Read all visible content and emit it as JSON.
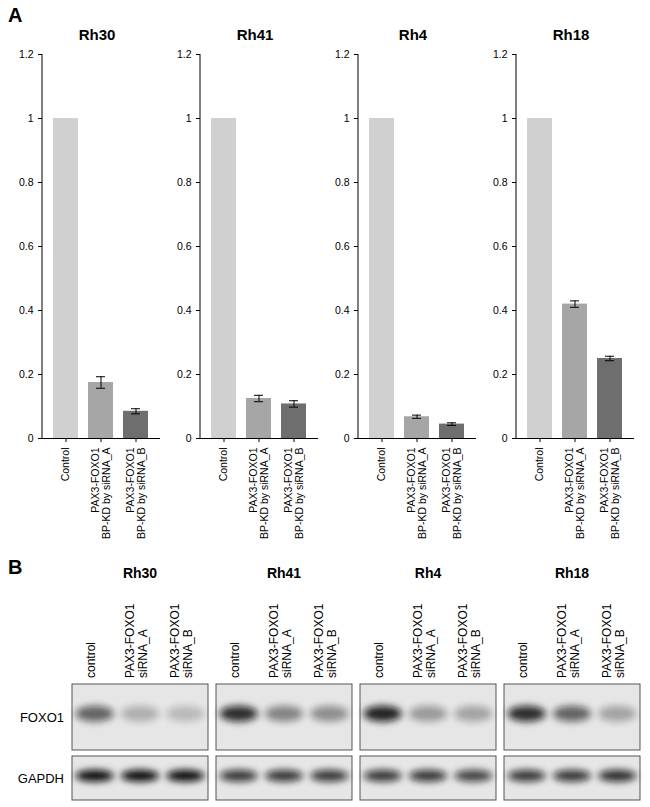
{
  "chart_data": [
    {
      "type": "bar",
      "title": "Rh30",
      "categories": [
        "Control",
        "PAX3-FOXO1\nBP-KD by siRNA_A",
        "PAX3-FOXO1\nBP-KD by siRNA_B"
      ],
      "values": [
        1,
        0.175,
        0.085
      ],
      "errors": [
        null,
        0.018,
        0.008
      ],
      "colors": [
        "#d0d0d0",
        "#a6a6a6",
        "#6e6e6e"
      ],
      "ylim": [
        0,
        1.2
      ],
      "yticks": [
        0,
        0.2,
        0.4,
        0.6,
        0.8,
        1,
        1.2
      ]
    },
    {
      "type": "bar",
      "title": "Rh41",
      "categories": [
        "Control",
        "PAX3-FOXO1\nBP-KD by siRNA_A",
        "PAX3-FOXO1\nBP-KD by siRNA_B"
      ],
      "values": [
        1,
        0.125,
        0.108
      ],
      "errors": [
        null,
        0.01,
        0.01
      ],
      "colors": [
        "#d0d0d0",
        "#a6a6a6",
        "#6e6e6e"
      ],
      "ylim": [
        0,
        1.2
      ],
      "yticks": [
        0,
        0.2,
        0.4,
        0.6,
        0.8,
        1,
        1.2
      ]
    },
    {
      "type": "bar",
      "title": "Rh4",
      "categories": [
        "Control",
        "PAX3-FOXO1\nBP-KD by siRNA_A",
        "PAX3-FOXO1\nBP-KD by siRNA_B"
      ],
      "values": [
        1,
        0.068,
        0.045
      ],
      "errors": [
        null,
        0.005,
        0.004
      ],
      "colors": [
        "#d0d0d0",
        "#a6a6a6",
        "#6e6e6e"
      ],
      "ylim": [
        0,
        1.2
      ],
      "yticks": [
        0,
        0.2,
        0.4,
        0.6,
        0.8,
        1,
        1.2
      ]
    },
    {
      "type": "bar",
      "title": "Rh18",
      "categories": [
        "Control",
        "PAX3-FOXO1\nBP-KD by siRNA_A",
        "PAX3-FOXO1\nBP-KD by siRNA_B"
      ],
      "values": [
        1,
        0.42,
        0.25
      ],
      "errors": [
        null,
        0.01,
        0.007
      ],
      "colors": [
        "#d0d0d0",
        "#a6a6a6",
        "#6e6e6e"
      ],
      "ylim": [
        0,
        1.2
      ],
      "yticks": [
        0,
        0.2,
        0.4,
        0.6,
        0.8,
        1,
        1.2
      ]
    }
  ],
  "panel_labels": [
    "A",
    "B"
  ],
  "blot": {
    "cell_lines": [
      "Rh30",
      "Rh41",
      "Rh4",
      "Rh18"
    ],
    "lanes": [
      "control",
      "PAX3-FOXO1\nsiRNA_A",
      "PAX3-FOXO1\nsiRNA_B"
    ],
    "rows": [
      "FOXO1",
      "GAPDH"
    ],
    "band_intensity": {
      "FOXO1": [
        [
          0.6,
          0.25,
          0.2
        ],
        [
          0.85,
          0.45,
          0.4
        ],
        [
          0.9,
          0.35,
          0.3
        ],
        [
          0.85,
          0.6,
          0.3
        ]
      ],
      "GAPDH": [
        [
          1,
          1,
          1
        ],
        [
          0.8,
          0.8,
          0.8
        ],
        [
          0.8,
          0.8,
          0.75
        ],
        [
          0.8,
          0.8,
          0.85
        ]
      ]
    }
  }
}
